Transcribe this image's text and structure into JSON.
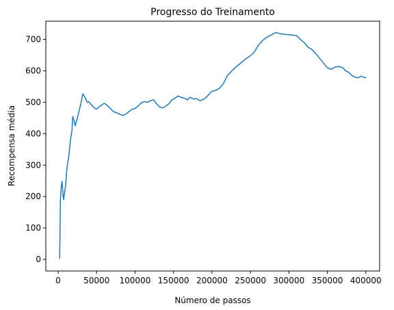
{
  "chart_data": {
    "type": "line",
    "title": "Progresso do Treinamento",
    "xlabel": "Número de passos",
    "ylabel": "Recompensa média",
    "xlim": [
      -16000,
      418000
    ],
    "ylim": [
      -37,
      758
    ],
    "x_ticks": [
      0,
      50000,
      100000,
      150000,
      200000,
      250000,
      300000,
      350000,
      400000
    ],
    "x_tick_labels": [
      "0",
      "50000",
      "100000",
      "150000",
      "200000",
      "250000",
      "300000",
      "350000",
      "400000"
    ],
    "y_ticks": [
      0,
      100,
      200,
      300,
      400,
      500,
      600,
      700
    ],
    "y_tick_labels": [
      "0",
      "100",
      "200",
      "300",
      "400",
      "500",
      "600",
      "700"
    ],
    "grid": false,
    "series": [
      {
        "color": "#1f77b4",
        "x": [
          2000,
          3000,
          4000,
          5000,
          6000,
          7000,
          8000,
          10000,
          11000,
          12000,
          14000,
          16000,
          18000,
          19000,
          21000,
          22000,
          24000,
          26000,
          28000,
          30000,
          32000,
          34000,
          36000,
          38000,
          40000,
          42000,
          44000,
          46000,
          48000,
          50000,
          53000,
          56000,
          60000,
          64000,
          68000,
          72000,
          76000,
          80000,
          84000,
          88000,
          92000,
          96000,
          100000,
          104000,
          108000,
          112000,
          116000,
          120000,
          124000,
          128000,
          132000,
          136000,
          140000,
          144000,
          148000,
          152000,
          156000,
          160000,
          164000,
          168000,
          172000,
          176000,
          180000,
          184000,
          188000,
          192000,
          196000,
          200000,
          205000,
          210000,
          215000,
          220000,
          225000,
          230000,
          235000,
          240000,
          245000,
          250000,
          255000,
          260000,
          265000,
          270000,
          275000,
          280000,
          283000,
          286000,
          290000,
          295000,
          300000,
          305000,
          310000,
          315000,
          320000,
          325000,
          330000,
          335000,
          340000,
          345000,
          350000,
          355000,
          360000,
          365000,
          370000,
          374000,
          378000,
          382000,
          386000,
          390000,
          394000,
          397000,
          400000
        ],
        "y": [
          3,
          190,
          230,
          248,
          220,
          190,
          205,
          240,
          280,
          300,
          330,
          380,
          410,
          455,
          440,
          425,
          440,
          460,
          480,
          500,
          527,
          520,
          510,
          500,
          502,
          495,
          490,
          485,
          480,
          478,
          485,
          490,
          497,
          490,
          480,
          470,
          467,
          462,
          458,
          462,
          470,
          478,
          480,
          488,
          498,
          502,
          500,
          505,
          508,
          495,
          485,
          482,
          488,
          495,
          508,
          513,
          520,
          516,
          513,
          508,
          516,
          510,
          512,
          505,
          508,
          515,
          525,
          535,
          538,
          545,
          560,
          585,
          598,
          610,
          620,
          630,
          640,
          648,
          660,
          680,
          695,
          705,
          712,
          718,
          722,
          720,
          718,
          716,
          715,
          714,
          712,
          700,
          690,
          675,
          668,
          655,
          640,
          625,
          610,
          605,
          612,
          614,
          610,
          600,
          595,
          585,
          580,
          578,
          583,
          580,
          578
        ]
      }
    ]
  }
}
